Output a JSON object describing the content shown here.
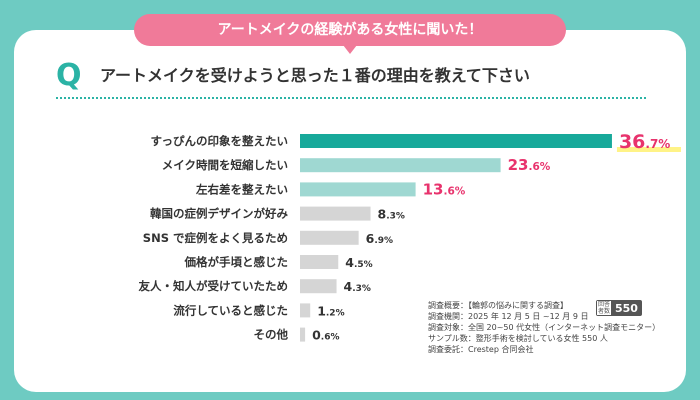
{
  "banner": {
    "text": "アートメイクの経験がある女性に聞いた！"
  },
  "question": {
    "mark": "Q",
    "text": "アートメイクを受けようと思った１番の理由を教えて下さい"
  },
  "colors": {
    "background": "#6ecbc2",
    "accent": "#2bb3a5",
    "pink": "#f07a99",
    "highlight": "#e8336d",
    "bar_top": "#17a99a",
    "bar_light": "#9fd8d2",
    "bar_gray": "#d5d5d5",
    "text": "#333333"
  },
  "chart_data": {
    "type": "bar",
    "orientation": "horizontal",
    "unit": "%",
    "categories": [
      "すっぴんの印象を整えたい",
      "メイク時間を短縮したい",
      "左右差を整えたい",
      "韓国の症例デザインが好み",
      "SNS で症例をよく見るため",
      "価格が手頃と感じた",
      "友人・知人が受けていたため",
      "流行していると感じた",
      "その他"
    ],
    "values": [
      36.7,
      23.6,
      13.6,
      8.3,
      6.9,
      4.5,
      4.3,
      1.2,
      0.6
    ],
    "xlim": [
      0,
      40
    ]
  },
  "survey": {
    "lines": [
      "調査概要：【輪郭の悩みに関する調査】",
      "調査機関：2025 年 12 月 5 日 ~12 月 9 日",
      "調査対象：全国 20~50 代女性（インターネット調査モニター）",
      "サンプル数：整形手術を検討している女性 550 人",
      "調査委託：Crestep 合同会社"
    ],
    "badge_label": "回答者数",
    "respondents": "550"
  }
}
